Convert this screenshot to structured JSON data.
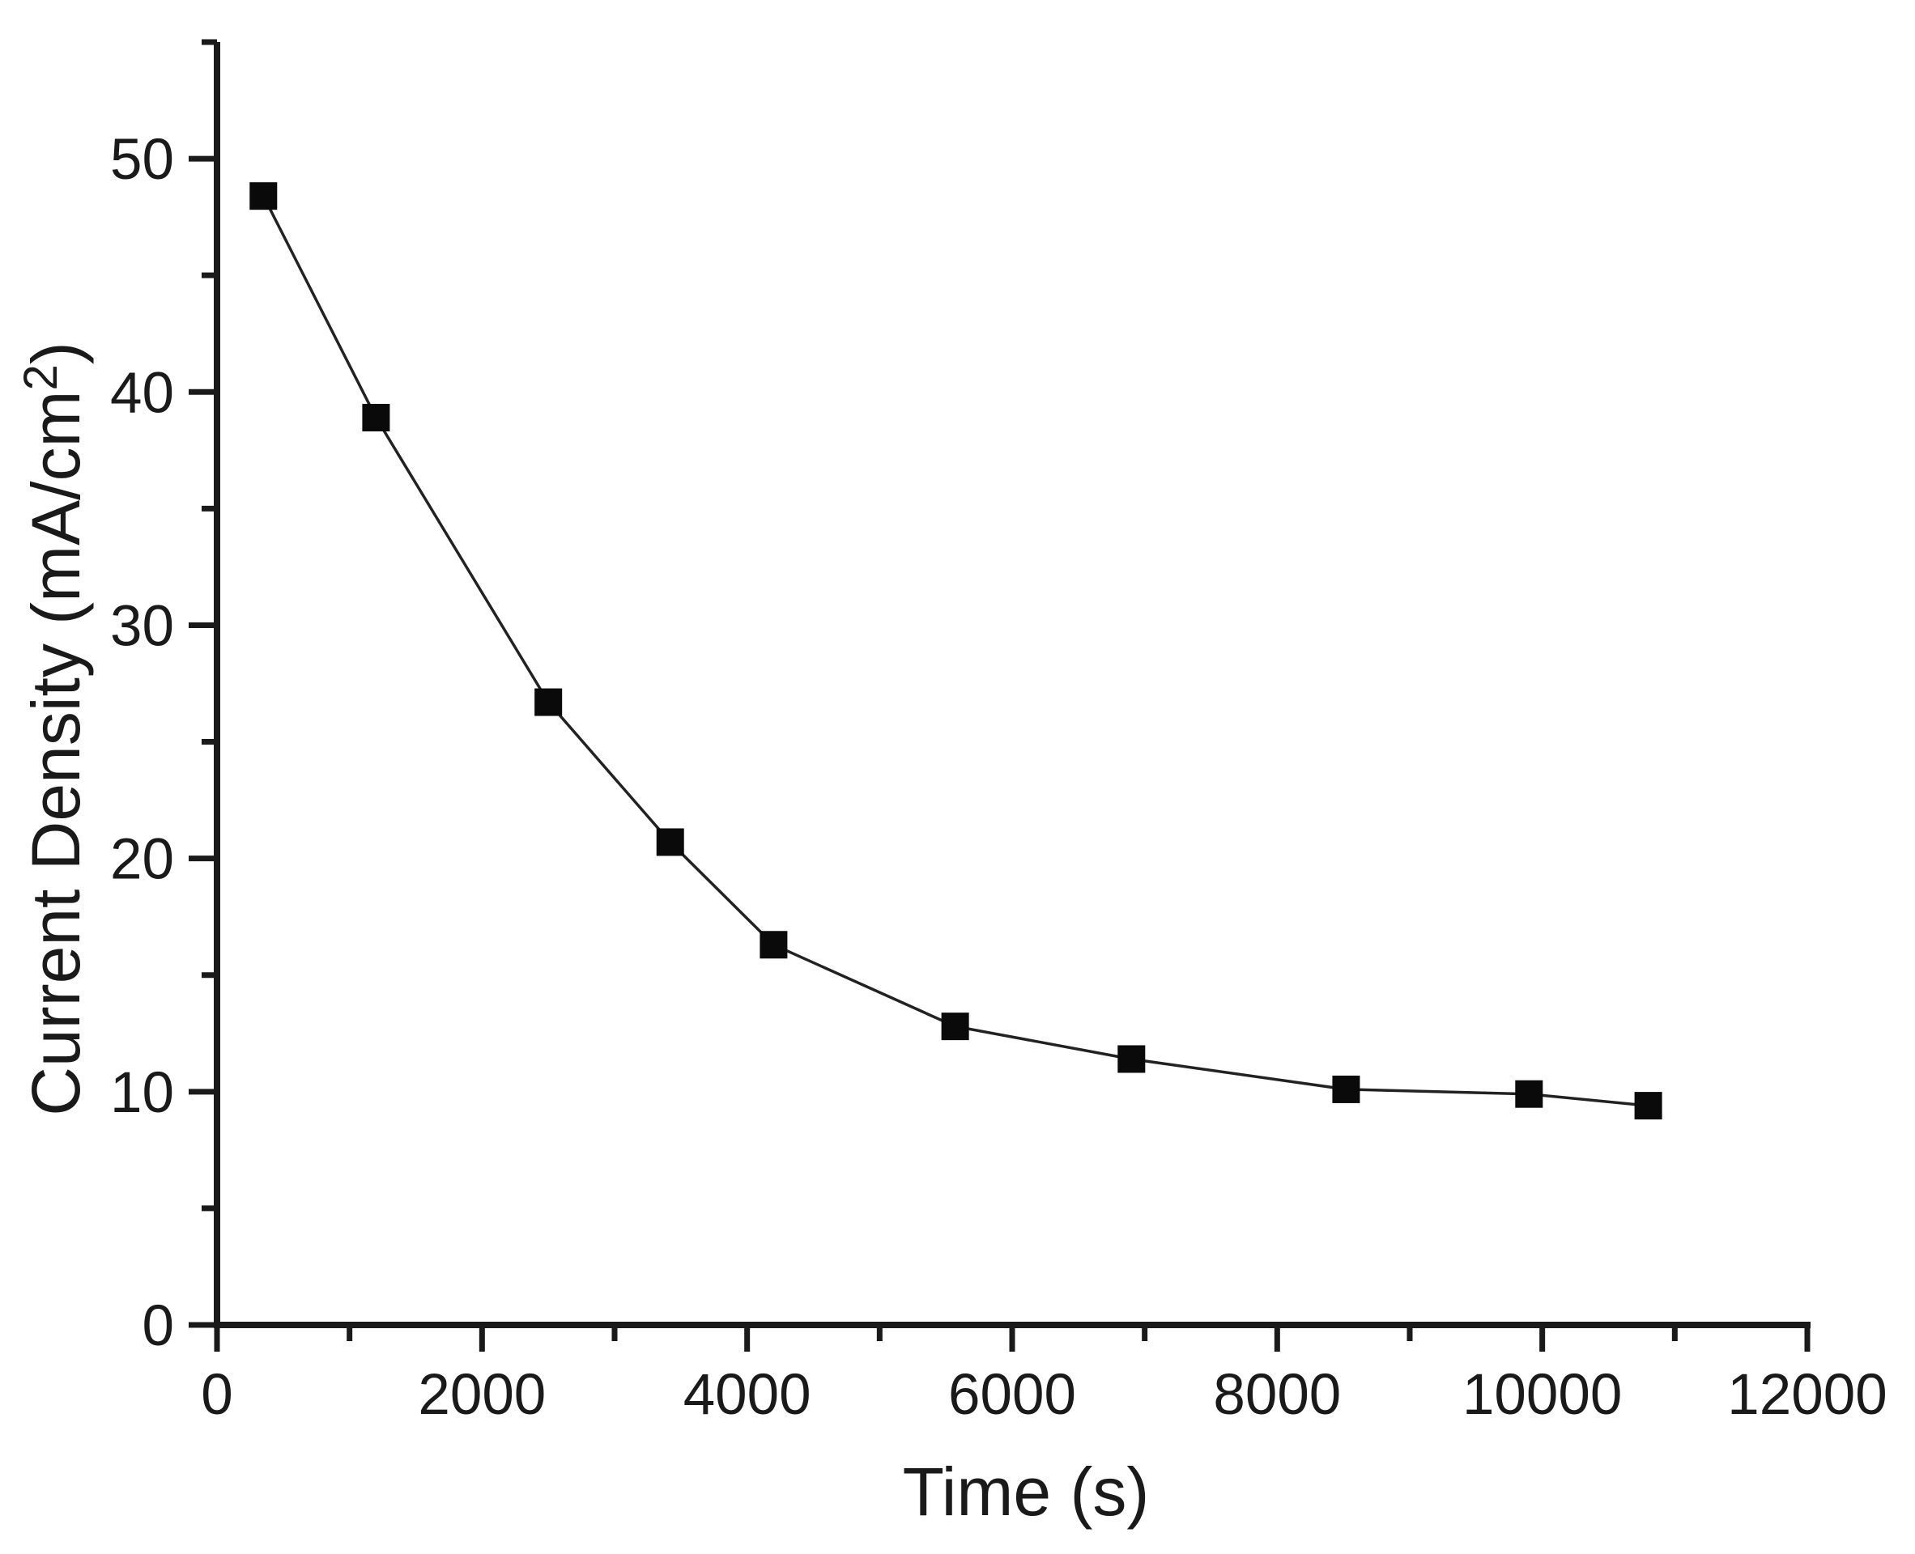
{
  "page": {
    "background": "#ffffff"
  },
  "chart_data": {
    "type": "line",
    "title": "",
    "xlabel": "Time (s)",
    "ylabel": "Current Density (mA/cm²)",
    "ylabel_parts": {
      "main": "Current Density (mA/cm",
      "sup": "2",
      "end": ")"
    },
    "xlim": [
      0,
      12000
    ],
    "ylim": [
      0,
      55
    ],
    "x_major_ticks": [
      0,
      2000,
      4000,
      6000,
      8000,
      10000,
      12000
    ],
    "x_major_tick_labels": [
      "0",
      "2000",
      "4000",
      "6000",
      "8000",
      "10000",
      "12000"
    ],
    "x_minor_ticks": [
      1000,
      3000,
      5000,
      7000,
      9000,
      11000
    ],
    "y_major_ticks": [
      0,
      10,
      20,
      30,
      40,
      50
    ],
    "y_major_tick_labels": [
      "0",
      "10",
      "20",
      "30",
      "40",
      "50"
    ],
    "y_minor_ticks": [
      5,
      15,
      25,
      35,
      45,
      55
    ],
    "grid": false,
    "legend": "none",
    "axis_color": "#1a1a1a",
    "line_color": "#222222",
    "marker_color": "#0a0a0a",
    "marker_shape": "square",
    "series": [
      {
        "name": "current-density",
        "points": [
          {
            "x": 350,
            "y": 48.4
          },
          {
            "x": 1200,
            "y": 38.9
          },
          {
            "x": 2500,
            "y": 26.7
          },
          {
            "x": 3420,
            "y": 20.7
          },
          {
            "x": 4200,
            "y": 16.3
          },
          {
            "x": 5570,
            "y": 12.8
          },
          {
            "x": 6900,
            "y": 11.4
          },
          {
            "x": 8520,
            "y": 10.1
          },
          {
            "x": 9900,
            "y": 9.9
          },
          {
            "x": 10800,
            "y": 9.4
          }
        ]
      }
    ]
  }
}
